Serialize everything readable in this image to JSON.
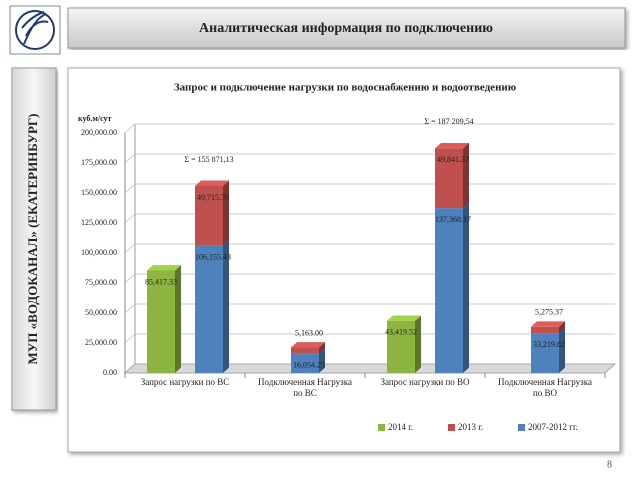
{
  "header": {
    "title": "Аналитическая информация по подключению"
  },
  "sidebar": {
    "text": "МУП «ВОДОКАНАЛ» (ЕКАТЕРИНБУРГ)"
  },
  "page_number": "8",
  "chart_data": {
    "type": "bar",
    "title": "Запрос и подключение нагрузки по водоснабжению и водоотведению",
    "y_label": "куб.м/сут",
    "categories": [
      "Запрос нагрузки по ВС",
      "Подключенная Нагрузка по ВС",
      "Запрос нагрузки по ВО",
      "Подключенная Нагрузка по ВО"
    ],
    "series": [
      {
        "name": "2014 г.",
        "color": "#8db640",
        "values": [
          85417.33,
          null,
          43419.52,
          null
        ],
        "value_labels": [
          "85,417.33",
          null,
          "43,419.52",
          null
        ]
      },
      {
        "name": "2007-2012 гг.",
        "color": "#4f81bd",
        "values": [
          106155.43,
          16054.25,
          137368.17,
          33219.82
        ],
        "value_labels": [
          "106,155.43",
          "16,054.25",
          "137,368.17",
          "33,219.82"
        ]
      },
      {
        "name": "2013 г.",
        "color": "#c0504d",
        "values": [
          49715.7,
          5163.0,
          49841.37,
          5275.37
        ],
        "value_labels": [
          "49,715.70",
          "5,163.00",
          "49,841.37",
          "5,275.37"
        ]
      }
    ],
    "annotations": [
      "Σ = 155 871,13",
      "Σ = 187 209,54"
    ],
    "ylim": [
      0,
      200000
    ],
    "yticks": [
      {
        "value": 0,
        "label": "0.00"
      },
      {
        "value": 25000,
        "label": "25,000.00"
      },
      {
        "value": 50000,
        "label": "50,000.00"
      },
      {
        "value": 75000,
        "label": "75,000.00"
      },
      {
        "value": 100000,
        "label": "100,000.00"
      },
      {
        "value": 125000,
        "label": "125,000.00"
      },
      {
        "value": 150000,
        "label": "150,000.00"
      },
      {
        "value": 175000,
        "label": "175,000.00"
      },
      {
        "value": 200000,
        "label": "200,000.00"
      }
    ],
    "grid": true,
    "legend": "bottom"
  }
}
